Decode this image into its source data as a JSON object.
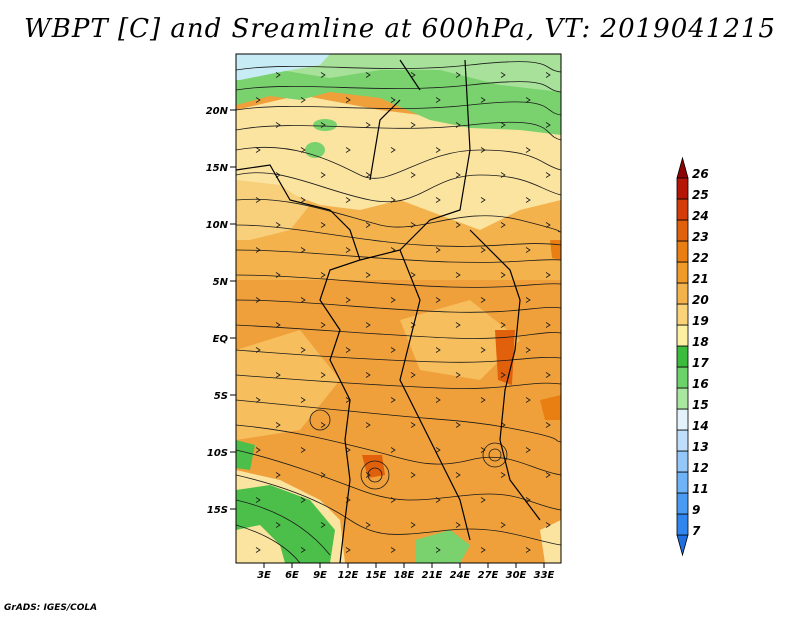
{
  "title": "WBPT [C] and Sreamline at 600hPa, VT: 2019041215",
  "credit": "GrADS: IGES/COLA",
  "map": {
    "lat_labels": [
      "20N",
      "15N",
      "10N",
      "5N",
      "EQ",
      "5S",
      "10S",
      "15S"
    ],
    "lon_labels": [
      "3E",
      "6E",
      "9E",
      "12E",
      "15E",
      "18E",
      "21E",
      "24E",
      "27E",
      "30E",
      "33E"
    ]
  },
  "colorbar": {
    "labels": [
      "7",
      "9",
      "11",
      "12",
      "13",
      "14",
      "15",
      "16",
      "17",
      "18",
      "19",
      "20",
      "21",
      "22",
      "23",
      "24",
      "25",
      "26"
    ],
    "colors": [
      "#1e6fe0",
      "#2f86ee",
      "#4a9cf2",
      "#6db3f5",
      "#93c8f8",
      "#bedefb",
      "#e4f3fb",
      "#a9e6a0",
      "#6cd26a",
      "#3cbc3c",
      "#fdf0a0",
      "#fad378",
      "#f4b24d",
      "#ef9a28",
      "#e97f12",
      "#e0600c",
      "#d43c08",
      "#b51606",
      "#8c0404"
    ]
  }
}
